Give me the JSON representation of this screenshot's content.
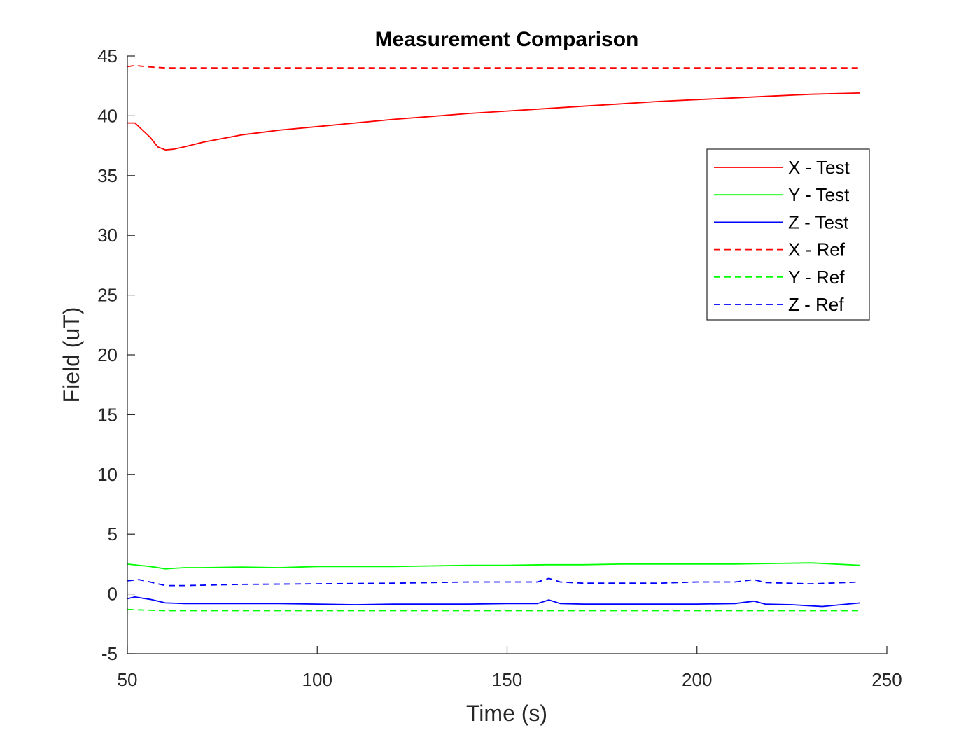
{
  "chart_data": {
    "type": "line",
    "title": "Measurement Comparison",
    "xlabel": "Time (s)",
    "ylabel": "Field (uT)",
    "xlim": [
      50,
      250
    ],
    "ylim": [
      -5,
      45
    ],
    "xticks": [
      50,
      100,
      150,
      200,
      250
    ],
    "yticks": [
      -5,
      0,
      5,
      10,
      15,
      20,
      25,
      30,
      35,
      40,
      45
    ],
    "grid": false,
    "legend_position": "top-right",
    "series": [
      {
        "name": "X - Test",
        "color": "#ff0000",
        "style": "solid",
        "x": [
          50,
          52,
          54,
          56,
          58,
          60,
          62,
          65,
          70,
          80,
          90,
          100,
          110,
          120,
          130,
          140,
          150,
          160,
          170,
          180,
          190,
          200,
          210,
          220,
          230,
          243
        ],
        "y": [
          39.4,
          39.4,
          38.8,
          38.2,
          37.4,
          37.15,
          37.2,
          37.4,
          37.8,
          38.4,
          38.8,
          39.1,
          39.4,
          39.7,
          39.95,
          40.2,
          40.4,
          40.6,
          40.8,
          41.0,
          41.2,
          41.35,
          41.5,
          41.65,
          41.8,
          41.9
        ]
      },
      {
        "name": "Y - Test",
        "color": "#00ff00",
        "style": "solid",
        "x": [
          50,
          53,
          56,
          60,
          65,
          70,
          80,
          90,
          100,
          110,
          120,
          130,
          140,
          150,
          160,
          170,
          180,
          190,
          200,
          210,
          220,
          230,
          243
        ],
        "y": [
          2.5,
          2.4,
          2.3,
          2.1,
          2.2,
          2.2,
          2.25,
          2.2,
          2.3,
          2.3,
          2.3,
          2.35,
          2.4,
          2.4,
          2.45,
          2.45,
          2.5,
          2.5,
          2.5,
          2.5,
          2.55,
          2.6,
          2.4
        ]
      },
      {
        "name": "Z - Test",
        "color": "#0000ff",
        "style": "solid",
        "x": [
          50,
          52,
          54,
          56,
          58,
          60,
          65,
          70,
          80,
          90,
          100,
          110,
          120,
          130,
          140,
          150,
          158,
          161,
          164,
          170,
          180,
          190,
          200,
          210,
          215,
          218,
          225,
          233,
          243
        ],
        "y": [
          -0.4,
          -0.25,
          -0.35,
          -0.45,
          -0.6,
          -0.75,
          -0.8,
          -0.8,
          -0.8,
          -0.8,
          -0.85,
          -0.9,
          -0.85,
          -0.85,
          -0.85,
          -0.8,
          -0.8,
          -0.5,
          -0.8,
          -0.85,
          -0.85,
          -0.85,
          -0.85,
          -0.8,
          -0.6,
          -0.85,
          -0.9,
          -1.05,
          -0.75
        ]
      },
      {
        "name": "X - Ref",
        "color": "#ff0000",
        "style": "dashed",
        "x": [
          50,
          52,
          55,
          57,
          60,
          70,
          100,
          150,
          200,
          243
        ],
        "y": [
          44.1,
          44.2,
          44.1,
          44.05,
          44.0,
          44.0,
          44.0,
          44.0,
          44.0,
          44.0
        ]
      },
      {
        "name": "Y - Ref",
        "color": "#00ff00",
        "style": "dashed",
        "x": [
          50,
          55,
          60,
          100,
          150,
          200,
          243
        ],
        "y": [
          -1.3,
          -1.35,
          -1.4,
          -1.4,
          -1.4,
          -1.4,
          -1.4
        ]
      },
      {
        "name": "Z - Ref",
        "color": "#0000ff",
        "style": "dashed",
        "x": [
          50,
          53,
          56,
          60,
          65,
          80,
          100,
          120,
          140,
          150,
          158,
          161,
          164,
          170,
          180,
          190,
          200,
          210,
          215,
          218,
          230,
          243
        ],
        "y": [
          1.1,
          1.2,
          1.0,
          0.7,
          0.7,
          0.8,
          0.85,
          0.9,
          1.0,
          1.0,
          1.0,
          1.3,
          1.0,
          0.9,
          0.9,
          0.9,
          1.0,
          1.0,
          1.2,
          0.95,
          0.85,
          1.0
        ]
      }
    ]
  }
}
